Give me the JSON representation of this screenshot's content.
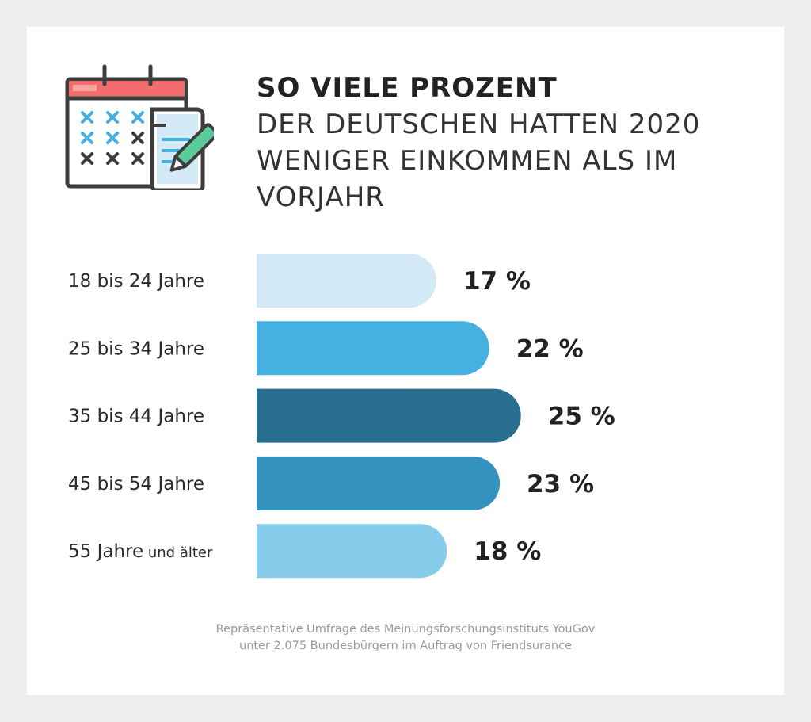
{
  "header": {
    "title": "SO VIELE PROZENT",
    "subtitle": "DER DEUTSCHEN HATTEN 2020 WENIGER EINKOMMEN ALS IM VORJAHR"
  },
  "icon": {
    "name": "calendar-document-icon"
  },
  "chart_data": {
    "type": "bar",
    "orientation": "horizontal",
    "categories": [
      "18 bis 24 Jahre",
      "25 bis 34 Jahre",
      "35 bis 44 Jahre",
      "45 bis 54 Jahre",
      "55 Jahre und älter"
    ],
    "category_parts": [
      [
        "18 bis 24 Jahre",
        ""
      ],
      [
        "25 bis 34 Jahre",
        ""
      ],
      [
        "35 bis 44 Jahre",
        ""
      ],
      [
        "45 bis 54 Jahre",
        ""
      ],
      [
        "55 Jahre",
        "und älter"
      ]
    ],
    "values": [
      17,
      22,
      25,
      23,
      18
    ],
    "value_labels": [
      "17 %",
      "22 %",
      "25 %",
      "23 %",
      "18 %"
    ],
    "colors": [
      "#d3eaf6",
      "#46b0e0",
      "#286f8f",
      "#3392bd",
      "#86ccea"
    ],
    "unit": "%",
    "grid": false,
    "legend": "none"
  },
  "footer": {
    "line1": "Repräsentative Umfrage des Meinungsforschungsinstituts YouGov",
    "line2": "unter 2.075 Bundesbürgern im Auftrag von Friendsurance"
  }
}
